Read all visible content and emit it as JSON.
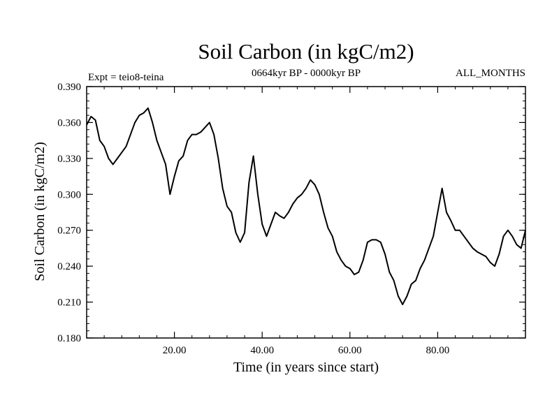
{
  "chart_data": {
    "type": "line",
    "title": "Soil Carbon (in kgC/m2)",
    "subtitle": "0664kyr BP - 0000kyr BP",
    "left_label": "Expt = teio8-teina",
    "right_label": "ALL_MONTHS",
    "xlabel": "Time (in years since start)",
    "ylabel": "Soil Carbon (in kgC/m2)",
    "xlim": [
      0,
      100
    ],
    "ylim": [
      0.18,
      0.39
    ],
    "xticks": [
      20,
      40,
      60,
      80
    ],
    "xtick_labels": [
      "20.00",
      "40.00",
      "60.00",
      "80.00"
    ],
    "yticks": [
      0.18,
      0.21,
      0.24,
      0.27,
      0.3,
      0.33,
      0.36,
      0.39
    ],
    "ytick_labels": [
      "0.180",
      "0.210",
      "0.240",
      "0.270",
      "0.300",
      "0.330",
      "0.360",
      "0.390"
    ],
    "grid": false,
    "series": [
      {
        "name": "Soil Carbon",
        "color": "#000000",
        "x": [
          0,
          1,
          2,
          3,
          4,
          5,
          6,
          7,
          8,
          9,
          10,
          11,
          12,
          13,
          14,
          15,
          16,
          17,
          18,
          19,
          20,
          21,
          22,
          23,
          24,
          25,
          26,
          27,
          28,
          29,
          30,
          31,
          32,
          33,
          34,
          35,
          36,
          37,
          38,
          39,
          40,
          41,
          42,
          43,
          44,
          45,
          46,
          47,
          48,
          49,
          50,
          51,
          52,
          53,
          54,
          55,
          56,
          57,
          58,
          59,
          60,
          61,
          62,
          63,
          64,
          65,
          66,
          67,
          68,
          69,
          70,
          71,
          72,
          73,
          74,
          75,
          76,
          77,
          78,
          79,
          80,
          81,
          82,
          83,
          84,
          85,
          86,
          87,
          88,
          89,
          90,
          91,
          92,
          93,
          94,
          95,
          96,
          97,
          98,
          99,
          100
        ],
        "values": [
          0.358,
          0.365,
          0.362,
          0.345,
          0.34,
          0.33,
          0.325,
          0.33,
          0.335,
          0.34,
          0.35,
          0.36,
          0.366,
          0.368,
          0.372,
          0.36,
          0.345,
          0.335,
          0.325,
          0.3,
          0.315,
          0.328,
          0.332,
          0.345,
          0.35,
          0.35,
          0.352,
          0.356,
          0.36,
          0.35,
          0.33,
          0.305,
          0.29,
          0.285,
          0.268,
          0.26,
          0.268,
          0.31,
          0.332,
          0.3,
          0.275,
          0.265,
          0.275,
          0.285,
          0.282,
          0.28,
          0.285,
          0.292,
          0.297,
          0.3,
          0.305,
          0.312,
          0.308,
          0.3,
          0.285,
          0.272,
          0.265,
          0.252,
          0.245,
          0.24,
          0.238,
          0.233,
          0.235,
          0.245,
          0.26,
          0.262,
          0.262,
          0.26,
          0.25,
          0.235,
          0.228,
          0.215,
          0.208,
          0.215,
          0.225,
          0.228,
          0.238,
          0.245,
          0.255,
          0.265,
          0.285,
          0.305,
          0.285,
          0.278,
          0.27,
          0.27,
          0.265,
          0.26,
          0.255,
          0.252,
          0.25,
          0.248,
          0.243,
          0.24,
          0.25,
          0.265,
          0.27,
          0.265,
          0.258,
          0.255,
          0.27
        ]
      }
    ]
  }
}
